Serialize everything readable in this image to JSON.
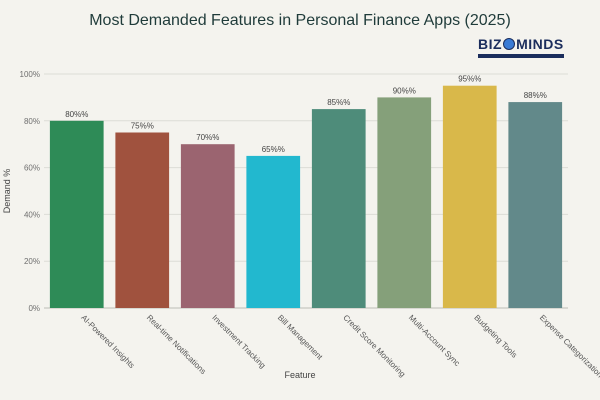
{
  "chart_data": {
    "type": "bar",
    "title": "Most Demanded Features in Personal Finance Apps (2025)",
    "xlabel": "Feature",
    "ylabel": "Demand %",
    "ylim": [
      0,
      100
    ],
    "yticks": [
      "0%",
      "20%",
      "40%",
      "60%",
      "80%",
      "100%"
    ],
    "ytick_values": [
      0,
      20,
      40,
      60,
      80,
      100
    ],
    "grid": true,
    "categories": [
      "AI-Powered Insights",
      "Real-time Notifications",
      "Investment Tracking",
      "Bill Management",
      "Credit Score Monitoring",
      "Multi-Account Sync",
      "Budgeting Tools",
      "Expense Categorization"
    ],
    "values": [
      80,
      75,
      70,
      65,
      85,
      90,
      95,
      88
    ],
    "data_labels": [
      "80%%",
      "75%%",
      "70%%",
      "65%%",
      "85%%",
      "90%%",
      "95%%",
      "88%%"
    ],
    "colors": [
      "#2e8b57",
      "#a0523e",
      "#9b6470",
      "#22b8cf",
      "#4e8c7a",
      "#85a07a",
      "#d9b84a",
      "#62898a"
    ]
  },
  "logo": {
    "text_left": "BIZ",
    "text_right": "MINDS"
  }
}
